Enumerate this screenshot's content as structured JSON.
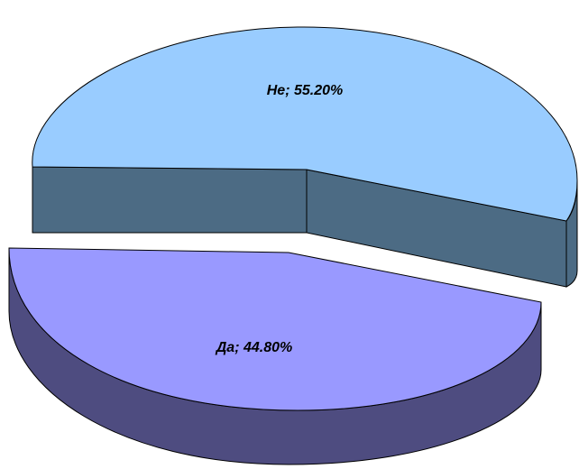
{
  "chart_data": {
    "type": "pie",
    "title": "",
    "three_d": true,
    "exploded": true,
    "slices": [
      {
        "category": "Не",
        "value": 55.2,
        "label": "Не; 55.20%",
        "top_color": "#99ccff",
        "side_color": "#4c6b84"
      },
      {
        "category": "Да",
        "value": 44.8,
        "label": "Да; 44.80%",
        "top_color": "#9999ff",
        "side_color": "#4e4c80"
      }
    ],
    "legend": "none"
  }
}
